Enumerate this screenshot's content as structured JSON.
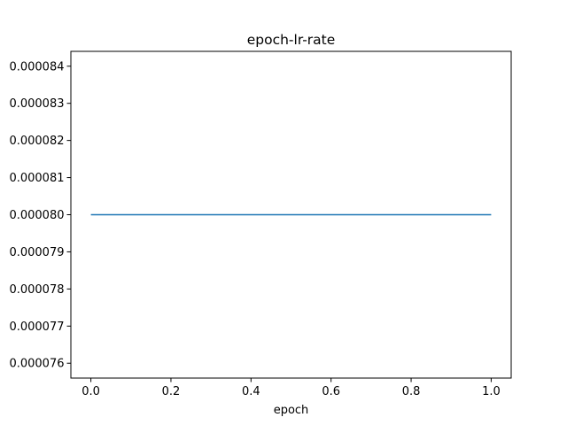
{
  "chart_data": {
    "type": "line",
    "title": "epoch-lr-rate",
    "xlabel": "epoch",
    "ylabel": "",
    "xlim": [
      -0.05,
      1.05
    ],
    "ylim": [
      7.56e-05,
      8.44e-05
    ],
    "x_ticks": [
      0.0,
      0.2,
      0.4,
      0.6,
      0.8,
      1.0
    ],
    "x_tick_labels": [
      "0.0",
      "0.2",
      "0.4",
      "0.6",
      "0.8",
      "1.0"
    ],
    "y_ticks": [
      7.6e-05,
      7.7e-05,
      7.8e-05,
      7.9e-05,
      8e-05,
      8.1e-05,
      8.2e-05,
      8.3e-05,
      8.4e-05
    ],
    "y_tick_labels": [
      "0.000076",
      "0.000077",
      "0.000078",
      "0.000079",
      "0.000080",
      "0.000081",
      "0.000082",
      "0.000083",
      "0.000084"
    ],
    "grid": false,
    "legend": "none",
    "series": [
      {
        "x": [
          0.0,
          1.0
        ],
        "y": [
          8e-05,
          8e-05
        ],
        "color": "#1f77b4"
      }
    ]
  }
}
